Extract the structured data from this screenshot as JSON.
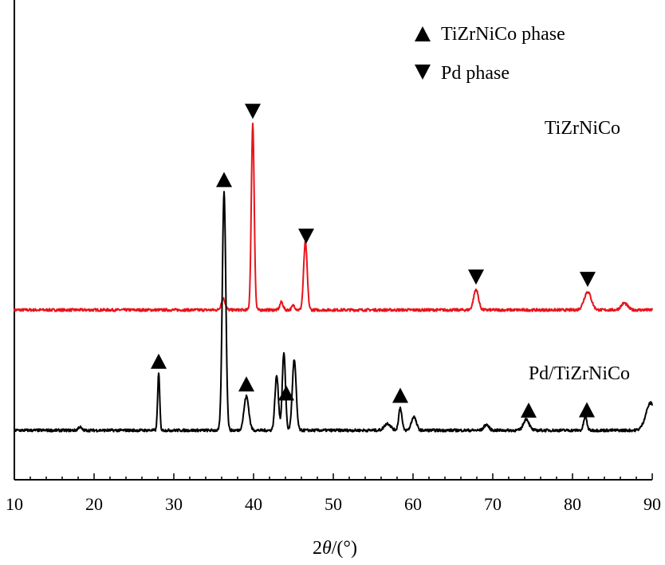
{
  "chart_data": {
    "type": "line",
    "xlabel_prefix": "2",
    "xlabel_theta": "θ",
    "xlabel_suffix": "/(°)",
    "xlim": [
      10,
      90
    ],
    "xticks": [
      10,
      20,
      30,
      40,
      50,
      60,
      70,
      80,
      90
    ],
    "grid": false,
    "legend_position": "top-right",
    "legend": [
      {
        "marker": "triangle-up",
        "label": "TiZrNiCo phase"
      },
      {
        "marker": "triangle-down",
        "label": "Pd phase"
      }
    ],
    "series": [
      {
        "name": "TiZrNiCo",
        "color": "#e8141b",
        "baseline": 0.53,
        "peaks": [
          {
            "x": 36.2,
            "h": 0.05,
            "w": 0.25
          },
          {
            "x": 39.9,
            "h": 0.82,
            "w": 0.18
          },
          {
            "x": 43.5,
            "h": 0.035,
            "w": 0.2
          },
          {
            "x": 45.0,
            "h": 0.02,
            "w": 0.2
          },
          {
            "x": 46.5,
            "h": 0.3,
            "w": 0.22
          },
          {
            "x": 67.9,
            "h": 0.09,
            "w": 0.3
          },
          {
            "x": 81.9,
            "h": 0.08,
            "w": 0.45
          },
          {
            "x": 86.5,
            "h": 0.03,
            "w": 0.4
          }
        ],
        "markers": [
          {
            "x": 39.9,
            "type": "triangle-down"
          },
          {
            "x": 46.6,
            "type": "triangle-down"
          },
          {
            "x": 67.9,
            "type": "triangle-down"
          },
          {
            "x": 81.9,
            "type": "triangle-down"
          }
        ]
      },
      {
        "name": "Pd/TiZrNiCo",
        "color": "#000000",
        "baseline": 0.0,
        "peaks": [
          {
            "x": 18.2,
            "h": 0.015,
            "w": 0.2
          },
          {
            "x": 28.1,
            "h": 0.25,
            "w": 0.13
          },
          {
            "x": 36.3,
            "h": 1.05,
            "w": 0.22
          },
          {
            "x": 39.1,
            "h": 0.15,
            "w": 0.3
          },
          {
            "x": 42.9,
            "h": 0.24,
            "w": 0.22
          },
          {
            "x": 43.8,
            "h": 0.34,
            "w": 0.2
          },
          {
            "x": 45.1,
            "h": 0.31,
            "w": 0.24
          },
          {
            "x": 56.8,
            "h": 0.03,
            "w": 0.4
          },
          {
            "x": 58.4,
            "h": 0.1,
            "w": 0.2
          },
          {
            "x": 60.1,
            "h": 0.06,
            "w": 0.3
          },
          {
            "x": 69.2,
            "h": 0.025,
            "w": 0.3
          },
          {
            "x": 74.2,
            "h": 0.05,
            "w": 0.35
          },
          {
            "x": 81.6,
            "h": 0.06,
            "w": 0.2
          },
          {
            "x": 89.8,
            "h": 0.12,
            "w": 0.6
          }
        ],
        "markers": [
          {
            "x": 28.1,
            "type": "triangle-up"
          },
          {
            "x": 36.3,
            "type": "triangle-up"
          },
          {
            "x": 39.1,
            "type": "triangle-up"
          },
          {
            "x": 44.1,
            "type": "triangle-up"
          },
          {
            "x": 58.4,
            "type": "triangle-up"
          },
          {
            "x": 74.5,
            "type": "triangle-up"
          },
          {
            "x": 81.8,
            "type": "triangle-up"
          }
        ]
      }
    ]
  }
}
